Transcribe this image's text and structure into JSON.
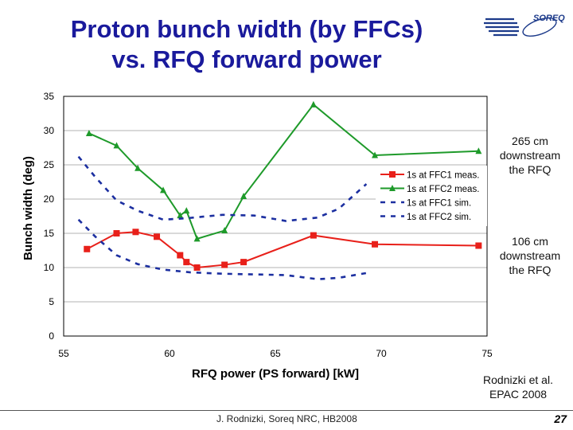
{
  "slide": {
    "title_line1": "Proton bunch width (by FFCs)",
    "title_line2": "vs. RFQ forward power",
    "logo_text": "SOREQ",
    "note_265": [
      "265 cm",
      "downstream",
      "the RFQ"
    ],
    "note_106": [
      "106 cm",
      "downstream",
      "the RFQ"
    ],
    "citation": [
      "Rodnizki et al.",
      "EPAC 2008"
    ],
    "footer": "J. Rodnizki, Soreq NRC, HB2008",
    "page_number": "27"
  },
  "colors": {
    "title": "#1a1a9c",
    "red": "#e8201a",
    "green": "#1e9a2a",
    "blue": "#1c2fa0",
    "logo": "#1c3a8a"
  },
  "chart_data": {
    "type": "line",
    "xlabel": "RFQ power (PS forward) [kW]",
    "ylabel": "Bunch width (deg)",
    "xlim": [
      55,
      75
    ],
    "ylim": [
      0,
      35
    ],
    "xticks": [
      55,
      60,
      65,
      70,
      75
    ],
    "yticks": [
      0,
      5,
      10,
      15,
      20,
      25,
      30,
      35
    ],
    "grid": true,
    "legend": "right",
    "series": [
      {
        "name": "1s at FFC1 meas.",
        "color": "#e8201a",
        "style": "solid",
        "marker": "square",
        "x": [
          56.1,
          57.5,
          58.4,
          59.4,
          60.5,
          60.8,
          61.3,
          62.6,
          63.5,
          66.8,
          69.7,
          74.6
        ],
        "y": [
          12.7,
          15.0,
          15.2,
          14.5,
          11.8,
          10.8,
          10.0,
          10.4,
          10.8,
          14.7,
          13.4,
          13.2
        ]
      },
      {
        "name": "1s at FFC2 meas.",
        "color": "#1e9a2a",
        "style": "solid",
        "marker": "triangle",
        "x": [
          56.2,
          57.5,
          58.5,
          59.7,
          60.5,
          60.8,
          61.3,
          62.6,
          63.5,
          66.8,
          69.7,
          74.6
        ],
        "y": [
          29.6,
          27.8,
          24.5,
          21.3,
          17.6,
          18.3,
          14.2,
          15.4,
          20.4,
          33.8,
          26.4,
          27.0
        ]
      },
      {
        "name": "1s at FFC1 sim.",
        "color": "#1c2fa0",
        "style": "dashed",
        "marker": "none",
        "x": [
          55.7,
          56.5,
          57.5,
          58.5,
          59.7,
          61.0,
          62.5,
          64.0,
          65.5,
          67.0,
          68.0,
          69.3
        ],
        "y": [
          17.0,
          14.5,
          11.8,
          10.5,
          9.7,
          9.3,
          9.1,
          9.0,
          8.9,
          8.3,
          8.5,
          9.2
        ]
      },
      {
        "name": "1s at FFC2 sim.",
        "color": "#1c2fa0",
        "style": "dashed",
        "marker": "none",
        "x": [
          55.7,
          56.5,
          57.5,
          58.5,
          59.7,
          60.8,
          62.5,
          64.0,
          65.5,
          67.0,
          68.0,
          69.3
        ],
        "y": [
          26.2,
          23.2,
          19.8,
          18.3,
          17.0,
          17.2,
          17.7,
          17.6,
          16.8,
          17.3,
          18.6,
          22.2
        ]
      }
    ]
  }
}
